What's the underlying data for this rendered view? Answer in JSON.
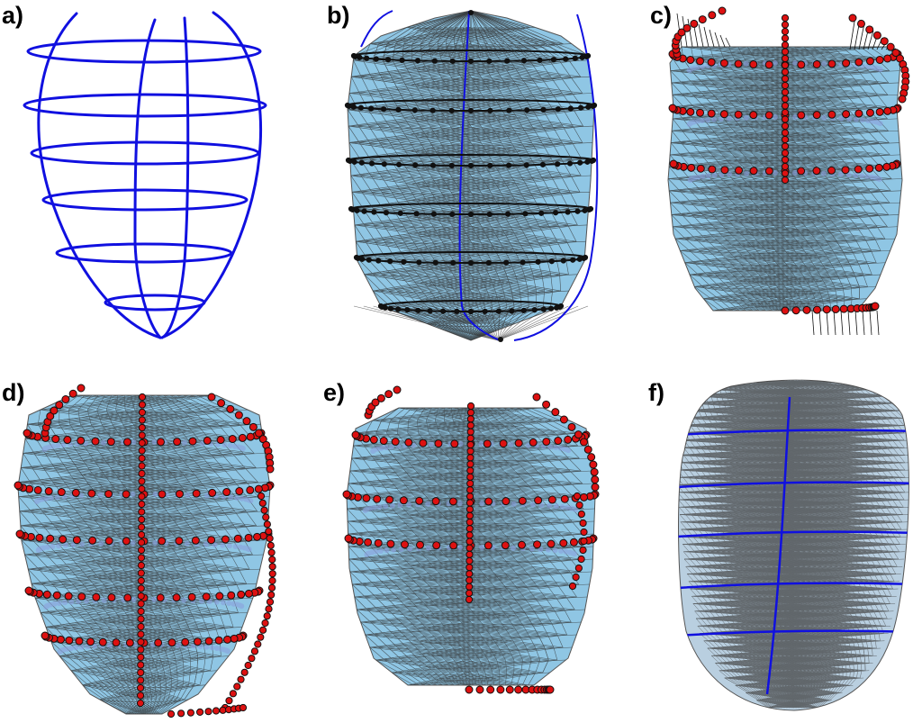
{
  "panels": [
    {
      "label": "a)"
    },
    {
      "label": "b)"
    },
    {
      "label": "c)"
    },
    {
      "label": "d)"
    },
    {
      "label": "e)"
    },
    {
      "label": "f)"
    }
  ],
  "colors": {
    "contour": "#1010e0",
    "mesh_fill": "#8fc6e4",
    "mesh_edge": "#3a3a3a",
    "point_fill": "#dd1111",
    "point_edge": "#111111",
    "inner_point": "#8aa0dd",
    "vertex": "#111111",
    "background": "#ffffff"
  }
}
